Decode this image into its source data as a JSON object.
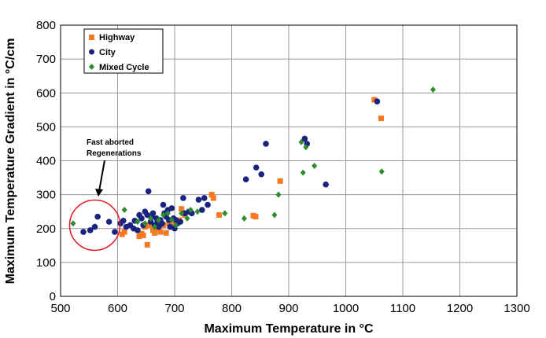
{
  "chart_data": {
    "type": "scatter",
    "title": "",
    "xlabel": "Maximum Temperature in °C",
    "ylabel": "Maximum Temperature Gradient in °C/cm",
    "xlim": [
      500,
      1300
    ],
    "ylim": [
      0,
      800
    ],
    "x_ticks": [
      500,
      600,
      700,
      800,
      900,
      1000,
      1100,
      1200,
      1300
    ],
    "y_ticks": [
      0,
      100,
      200,
      300,
      400,
      500,
      600,
      700,
      800
    ],
    "grid": true,
    "legend_position": "top-left",
    "annotation": {
      "lines": [
        "Fast aborted",
        "Regenerations"
      ],
      "target_x": 560,
      "target_y": 210
    },
    "series": [
      {
        "name": "Highway",
        "marker": "square",
        "color": "#f47920",
        "points": [
          [
            608,
            183
          ],
          [
            612,
            190
          ],
          [
            638,
            177
          ],
          [
            642,
            185
          ],
          [
            645,
            180
          ],
          [
            648,
            205
          ],
          [
            652,
            152
          ],
          [
            656,
            210
          ],
          [
            662,
            195
          ],
          [
            665,
            187
          ],
          [
            670,
            200
          ],
          [
            675,
            190
          ],
          [
            680,
            210
          ],
          [
            685,
            187
          ],
          [
            690,
            215
          ],
          [
            695,
            205
          ],
          [
            700,
            210
          ],
          [
            708,
            225
          ],
          [
            712,
            258
          ],
          [
            718,
            240
          ],
          [
            765,
            300
          ],
          [
            768,
            290
          ],
          [
            778,
            240
          ],
          [
            838,
            238
          ],
          [
            842,
            235
          ],
          [
            885,
            340
          ],
          [
            1050,
            580
          ],
          [
            1062,
            525
          ]
        ]
      },
      {
        "name": "City",
        "marker": "circle",
        "color": "#1a237e",
        "points": [
          [
            540,
            190
          ],
          [
            552,
            195
          ],
          [
            560,
            205
          ],
          [
            565,
            235
          ],
          [
            585,
            220
          ],
          [
            595,
            190
          ],
          [
            605,
            215
          ],
          [
            610,
            223
          ],
          [
            615,
            205
          ],
          [
            622,
            210
          ],
          [
            628,
            200
          ],
          [
            630,
            223
          ],
          [
            635,
            195
          ],
          [
            638,
            240
          ],
          [
            642,
            230
          ],
          [
            645,
            210
          ],
          [
            648,
            250
          ],
          [
            652,
            240
          ],
          [
            654,
            310
          ],
          [
            658,
            220
          ],
          [
            660,
            235
          ],
          [
            662,
            245
          ],
          [
            665,
            210
          ],
          [
            668,
            230
          ],
          [
            670,
            222
          ],
          [
            672,
            205
          ],
          [
            675,
            225
          ],
          [
            678,
            215
          ],
          [
            680,
            270
          ],
          [
            682,
            245
          ],
          [
            685,
            235
          ],
          [
            688,
            255
          ],
          [
            690,
            225
          ],
          [
            692,
            205
          ],
          [
            695,
            260
          ],
          [
            698,
            230
          ],
          [
            700,
            200
          ],
          [
            702,
            225
          ],
          [
            705,
            215
          ],
          [
            710,
            220
          ],
          [
            715,
            290
          ],
          [
            718,
            245
          ],
          [
            725,
            250
          ],
          [
            730,
            245
          ],
          [
            742,
            285
          ],
          [
            748,
            255
          ],
          [
            752,
            290
          ],
          [
            758,
            270
          ],
          [
            825,
            345
          ],
          [
            843,
            380
          ],
          [
            852,
            360
          ],
          [
            860,
            450
          ],
          [
            928,
            465
          ],
          [
            932,
            450
          ],
          [
            965,
            330
          ],
          [
            1055,
            575
          ]
        ]
      },
      {
        "name": "Mixed Cycle",
        "marker": "diamond",
        "color": "#2e8b2e",
        "points": [
          [
            522,
            215
          ],
          [
            612,
            255
          ],
          [
            635,
            220
          ],
          [
            648,
            215
          ],
          [
            658,
            230
          ],
          [
            665,
            205
          ],
          [
            672,
            225
          ],
          [
            680,
            240
          ],
          [
            688,
            245
          ],
          [
            695,
            225
          ],
          [
            702,
            210
          ],
          [
            712,
            245
          ],
          [
            722,
            230
          ],
          [
            728,
            255
          ],
          [
            740,
            250
          ],
          [
            788,
            245
          ],
          [
            822,
            230
          ],
          [
            875,
            240
          ],
          [
            882,
            300
          ],
          [
            922,
            455
          ],
          [
            925,
            365
          ],
          [
            930,
            440
          ],
          [
            945,
            385
          ],
          [
            1063,
            368
          ],
          [
            1153,
            610
          ]
        ]
      }
    ]
  }
}
